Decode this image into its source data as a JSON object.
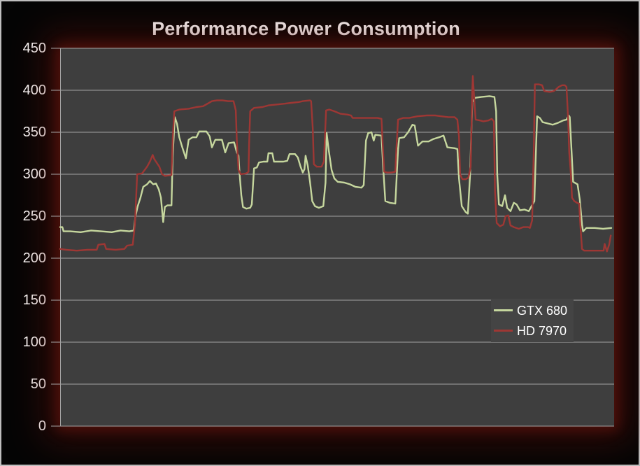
{
  "title": "Performance Power Consumption",
  "colors": {
    "background": "#050505",
    "frame_border": "#bfbfbf",
    "plot_background": "#3e3e3e",
    "legend_background": "#444444",
    "gridline": "#a3a3a3",
    "axis_line": "#a3a3a3",
    "title_text": "#ffffff",
    "tick_label_text": "#ffffff",
    "glow": "#601410",
    "series_gtx680": "#c6d79e",
    "series_hd7970": "#9e3734"
  },
  "chart_data": {
    "type": "line",
    "title": "Performance Power Consumption",
    "xlabel": "",
    "ylabel": "",
    "x_unit": "time fraction (x-axis unlabeled in chart)",
    "y_unit": "watts (implied)",
    "ylim": [
      0,
      450
    ],
    "ytick_step": 50,
    "yticks": [
      0,
      50,
      100,
      150,
      200,
      250,
      300,
      350,
      400,
      450
    ],
    "ytick_labels": [
      "0",
      "50",
      "100",
      "150",
      "200",
      "250",
      "300",
      "350",
      "400",
      "450"
    ],
    "grid": "horizontal",
    "legend_position": "middle-right",
    "series": [
      {
        "name": "GTX 680",
        "color": "#c6d79e",
        "points": [
          [
            0.0,
            237
          ],
          [
            0.004,
            237
          ],
          [
            0.006,
            232
          ],
          [
            0.018,
            232
          ],
          [
            0.037,
            231
          ],
          [
            0.056,
            233
          ],
          [
            0.074,
            232
          ],
          [
            0.093,
            231
          ],
          [
            0.109,
            233
          ],
          [
            0.125,
            232
          ],
          [
            0.133,
            233
          ],
          [
            0.136,
            250
          ],
          [
            0.14,
            262
          ],
          [
            0.145,
            272
          ],
          [
            0.15,
            285
          ],
          [
            0.157,
            288
          ],
          [
            0.162,
            292
          ],
          [
            0.168,
            288
          ],
          [
            0.173,
            289
          ],
          [
            0.178,
            282
          ],
          [
            0.182,
            272
          ],
          [
            0.186,
            243
          ],
          [
            0.189,
            261
          ],
          [
            0.194,
            263
          ],
          [
            0.201,
            263
          ],
          [
            0.203,
            320
          ],
          [
            0.207,
            368
          ],
          [
            0.211,
            360
          ],
          [
            0.215,
            344
          ],
          [
            0.221,
            331
          ],
          [
            0.227,
            319
          ],
          [
            0.232,
            341
          ],
          [
            0.239,
            344
          ],
          [
            0.246,
            344
          ],
          [
            0.251,
            351
          ],
          [
            0.264,
            351
          ],
          [
            0.27,
            345
          ],
          [
            0.274,
            332
          ],
          [
            0.28,
            341
          ],
          [
            0.292,
            341
          ],
          [
            0.298,
            326
          ],
          [
            0.304,
            337
          ],
          [
            0.314,
            338
          ],
          [
            0.319,
            326
          ],
          [
            0.322,
            322
          ],
          [
            0.324,
            300
          ],
          [
            0.327,
            275
          ],
          [
            0.33,
            261
          ],
          [
            0.336,
            259
          ],
          [
            0.343,
            260
          ],
          [
            0.346,
            264
          ],
          [
            0.35,
            307
          ],
          [
            0.355,
            308
          ],
          [
            0.359,
            314
          ],
          [
            0.367,
            315
          ],
          [
            0.374,
            315
          ],
          [
            0.376,
            325
          ],
          [
            0.383,
            325
          ],
          [
            0.386,
            315
          ],
          [
            0.403,
            315
          ],
          [
            0.41,
            316
          ],
          [
            0.414,
            324
          ],
          [
            0.424,
            324
          ],
          [
            0.429,
            320
          ],
          [
            0.434,
            309
          ],
          [
            0.438,
            302
          ],
          [
            0.441,
            306
          ],
          [
            0.443,
            322
          ],
          [
            0.447,
            310
          ],
          [
            0.451,
            291
          ],
          [
            0.455,
            268
          ],
          [
            0.46,
            262
          ],
          [
            0.467,
            260
          ],
          [
            0.475,
            262
          ],
          [
            0.479,
            290
          ],
          [
            0.481,
            349
          ],
          [
            0.485,
            328
          ],
          [
            0.49,
            305
          ],
          [
            0.495,
            295
          ],
          [
            0.501,
            291
          ],
          [
            0.513,
            290
          ],
          [
            0.523,
            288
          ],
          [
            0.533,
            285
          ],
          [
            0.544,
            284
          ],
          [
            0.548,
            287
          ],
          [
            0.552,
            340
          ],
          [
            0.556,
            349
          ],
          [
            0.562,
            350
          ],
          [
            0.566,
            340
          ],
          [
            0.569,
            347
          ],
          [
            0.58,
            346
          ],
          [
            0.583,
            310
          ],
          [
            0.587,
            268
          ],
          [
            0.595,
            266
          ],
          [
            0.605,
            265
          ],
          [
            0.607,
            290
          ],
          [
            0.61,
            330
          ],
          [
            0.612,
            343
          ],
          [
            0.621,
            344
          ],
          [
            0.628,
            350
          ],
          [
            0.636,
            359
          ],
          [
            0.64,
            358
          ],
          [
            0.646,
            334
          ],
          [
            0.654,
            339
          ],
          [
            0.665,
            339
          ],
          [
            0.674,
            342
          ],
          [
            0.684,
            344
          ],
          [
            0.692,
            346
          ],
          [
            0.699,
            332
          ],
          [
            0.712,
            331
          ],
          [
            0.717,
            330
          ],
          [
            0.72,
            295
          ],
          [
            0.725,
            262
          ],
          [
            0.732,
            255
          ],
          [
            0.736,
            253
          ],
          [
            0.74,
            300
          ],
          [
            0.744,
            386
          ],
          [
            0.749,
            391
          ],
          [
            0.76,
            392
          ],
          [
            0.775,
            393
          ],
          [
            0.784,
            392
          ],
          [
            0.787,
            375
          ],
          [
            0.789,
            300
          ],
          [
            0.792,
            264
          ],
          [
            0.798,
            262
          ],
          [
            0.803,
            275
          ],
          [
            0.807,
            260
          ],
          [
            0.813,
            256
          ],
          [
            0.819,
            266
          ],
          [
            0.824,
            264
          ],
          [
            0.83,
            257
          ],
          [
            0.838,
            258
          ],
          [
            0.846,
            256
          ],
          [
            0.851,
            262
          ],
          [
            0.856,
            268
          ],
          [
            0.859,
            330
          ],
          [
            0.861,
            369
          ],
          [
            0.866,
            367
          ],
          [
            0.871,
            362
          ],
          [
            0.883,
            360
          ],
          [
            0.889,
            359
          ],
          [
            0.898,
            361
          ],
          [
            0.908,
            364
          ],
          [
            0.914,
            365
          ],
          [
            0.918,
            370
          ],
          [
            0.92,
            368
          ],
          [
            0.923,
            330
          ],
          [
            0.926,
            291
          ],
          [
            0.934,
            288
          ],
          [
            0.938,
            270
          ],
          [
            0.942,
            240
          ],
          [
            0.944,
            232
          ],
          [
            0.95,
            236
          ],
          [
            0.965,
            236
          ],
          [
            0.98,
            235
          ],
          [
            0.995,
            236
          ]
        ]
      },
      {
        "name": "HD 7970",
        "color": "#9e3734",
        "points": [
          [
            0.0,
            211
          ],
          [
            0.011,
            210
          ],
          [
            0.03,
            209
          ],
          [
            0.049,
            210
          ],
          [
            0.066,
            210
          ],
          [
            0.069,
            216
          ],
          [
            0.08,
            217
          ],
          [
            0.083,
            211
          ],
          [
            0.1,
            210
          ],
          [
            0.116,
            211
          ],
          [
            0.121,
            215
          ],
          [
            0.131,
            216
          ],
          [
            0.135,
            240
          ],
          [
            0.139,
            300
          ],
          [
            0.148,
            301
          ],
          [
            0.157,
            309
          ],
          [
            0.162,
            315
          ],
          [
            0.167,
            323
          ],
          [
            0.17,
            318
          ],
          [
            0.174,
            314
          ],
          [
            0.179,
            309
          ],
          [
            0.184,
            300
          ],
          [
            0.189,
            298
          ],
          [
            0.201,
            299
          ],
          [
            0.203,
            340
          ],
          [
            0.206,
            375
          ],
          [
            0.215,
            377
          ],
          [
            0.232,
            378
          ],
          [
            0.246,
            380
          ],
          [
            0.258,
            381
          ],
          [
            0.266,
            384
          ],
          [
            0.274,
            387
          ],
          [
            0.283,
            388
          ],
          [
            0.293,
            388
          ],
          [
            0.303,
            387
          ],
          [
            0.313,
            387
          ],
          [
            0.317,
            376
          ],
          [
            0.319,
            340
          ],
          [
            0.322,
            305
          ],
          [
            0.326,
            300
          ],
          [
            0.336,
            301
          ],
          [
            0.34,
            303
          ],
          [
            0.341,
            335
          ],
          [
            0.343,
            375
          ],
          [
            0.35,
            379
          ],
          [
            0.365,
            380
          ],
          [
            0.376,
            382
          ],
          [
            0.39,
            383
          ],
          [
            0.405,
            384
          ],
          [
            0.417,
            385
          ],
          [
            0.431,
            386
          ],
          [
            0.438,
            387
          ],
          [
            0.451,
            388
          ],
          [
            0.453,
            387
          ],
          [
            0.456,
            354
          ],
          [
            0.458,
            312
          ],
          [
            0.463,
            309
          ],
          [
            0.472,
            309
          ],
          [
            0.476,
            315
          ],
          [
            0.48,
            376
          ],
          [
            0.486,
            377
          ],
          [
            0.495,
            375
          ],
          [
            0.506,
            372
          ],
          [
            0.519,
            371
          ],
          [
            0.525,
            370
          ],
          [
            0.528,
            367
          ],
          [
            0.538,
            367
          ],
          [
            0.556,
            367
          ],
          [
            0.573,
            367
          ],
          [
            0.58,
            366
          ],
          [
            0.582,
            340
          ],
          [
            0.585,
            303
          ],
          [
            0.59,
            302
          ],
          [
            0.598,
            302
          ],
          [
            0.605,
            303
          ],
          [
            0.607,
            330
          ],
          [
            0.61,
            365
          ],
          [
            0.619,
            367
          ],
          [
            0.63,
            367
          ],
          [
            0.645,
            369
          ],
          [
            0.662,
            370
          ],
          [
            0.677,
            370
          ],
          [
            0.688,
            369
          ],
          [
            0.701,
            368
          ],
          [
            0.712,
            368
          ],
          [
            0.717,
            365
          ],
          [
            0.72,
            345
          ],
          [
            0.722,
            300
          ],
          [
            0.726,
            294
          ],
          [
            0.732,
            294
          ],
          [
            0.737,
            296
          ],
          [
            0.741,
            309
          ],
          [
            0.744,
            400
          ],
          [
            0.745,
            417
          ],
          [
            0.747,
            395
          ],
          [
            0.75,
            365
          ],
          [
            0.758,
            364
          ],
          [
            0.764,
            363
          ],
          [
            0.773,
            364
          ],
          [
            0.779,
            366
          ],
          [
            0.783,
            363
          ],
          [
            0.785,
            280
          ],
          [
            0.788,
            242
          ],
          [
            0.794,
            238
          ],
          [
            0.8,
            240
          ],
          [
            0.804,
            250
          ],
          [
            0.809,
            251
          ],
          [
            0.813,
            239
          ],
          [
            0.819,
            237
          ],
          [
            0.828,
            235
          ],
          [
            0.836,
            237
          ],
          [
            0.845,
            237
          ],
          [
            0.848,
            236
          ],
          [
            0.852,
            245
          ],
          [
            0.855,
            330
          ],
          [
            0.857,
            407
          ],
          [
            0.864,
            407
          ],
          [
            0.87,
            406
          ],
          [
            0.874,
            399
          ],
          [
            0.884,
            398
          ],
          [
            0.891,
            399
          ],
          [
            0.895,
            401
          ],
          [
            0.9,
            404
          ],
          [
            0.906,
            406
          ],
          [
            0.911,
            406
          ],
          [
            0.914,
            404
          ],
          [
            0.917,
            365
          ],
          [
            0.919,
            326
          ],
          [
            0.922,
            300
          ],
          [
            0.924,
            272
          ],
          [
            0.928,
            268
          ],
          [
            0.933,
            266
          ],
          [
            0.937,
            265
          ],
          [
            0.939,
            240
          ],
          [
            0.942,
            211
          ],
          [
            0.946,
            209
          ],
          [
            0.958,
            209
          ],
          [
            0.971,
            209
          ],
          [
            0.981,
            209
          ],
          [
            0.983,
            217
          ],
          [
            0.987,
            208
          ],
          [
            0.991,
            216
          ],
          [
            0.994,
            227
          ]
        ]
      }
    ]
  }
}
